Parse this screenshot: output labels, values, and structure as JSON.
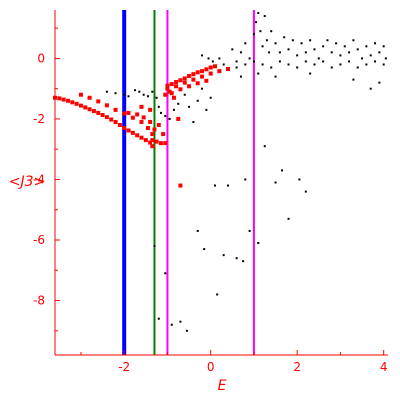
{
  "chart_data": {
    "type": "scatter",
    "xlabel": "E",
    "ylabel": "<J3>",
    "xlim": [
      -3.6,
      4.1
    ],
    "ylim": [
      -9.8,
      1.6
    ],
    "x_ticks": [
      -2,
      0,
      2,
      4
    ],
    "x_tick_labels": [
      "-2",
      "0",
      "2",
      "4"
    ],
    "y_ticks": [
      0,
      -2,
      -4,
      -6,
      -8
    ],
    "y_tick_labels": [
      "0",
      "-2",
      "-4",
      "-6",
      "-8"
    ],
    "grid": false,
    "colors": {
      "axis": "#ff0000",
      "red_points": "#ff0000",
      "black_points": "#000000",
      "blue_line": "#0000ff",
      "green_line": "#008000",
      "magenta_line": "#ff00ff"
    },
    "vertical_lines": [
      {
        "x": -2.0,
        "color": "#0000ff",
        "style": "thick"
      },
      {
        "x": -1.3,
        "color": "#008000",
        "style": "thin"
      },
      {
        "x": -1.0,
        "color": "#ff00ff",
        "style": "thin"
      },
      {
        "x": 1.0,
        "color": "#ff00ff",
        "style": "thin"
      }
    ],
    "series": [
      {
        "color": "#ff0000",
        "points": [
          [
            -3.6,
            -1.3
          ],
          [
            -3.5,
            -1.32
          ],
          [
            -3.4,
            -1.36
          ],
          [
            -3.3,
            -1.4
          ],
          [
            -3.2,
            -1.45
          ],
          [
            -3.1,
            -1.5
          ],
          [
            -3.0,
            -1.56
          ],
          [
            -2.9,
            -1.62
          ],
          [
            -2.8,
            -1.68
          ],
          [
            -2.7,
            -1.74
          ],
          [
            -2.6,
            -1.8
          ],
          [
            -2.5,
            -1.87
          ],
          [
            -2.4,
            -1.94
          ],
          [
            -2.3,
            -2.02
          ],
          [
            -2.2,
            -2.1
          ],
          [
            -2.1,
            -2.2
          ],
          [
            -2.0,
            -2.3
          ],
          [
            -1.9,
            -2.38
          ],
          [
            -1.8,
            -2.46
          ],
          [
            -1.7,
            -2.54
          ],
          [
            -1.6,
            -2.62
          ],
          [
            -1.5,
            -2.7
          ],
          [
            -1.4,
            -2.78
          ],
          [
            -1.35,
            -2.9
          ],
          [
            -3.0,
            -1.2
          ],
          [
            -2.8,
            -1.3
          ],
          [
            -2.6,
            -1.42
          ],
          [
            -2.4,
            -1.55
          ],
          [
            -2.2,
            -1.7
          ],
          [
            -2.0,
            -1.82
          ],
          [
            -1.8,
            -1.96
          ],
          [
            -1.6,
            -2.1
          ],
          [
            -1.45,
            -2.3
          ],
          [
            -1.35,
            -2.5
          ],
          [
            -1.9,
            -1.8
          ],
          [
            -1.7,
            -1.85
          ],
          [
            -1.55,
            -1.95
          ],
          [
            -1.4,
            -2.1
          ],
          [
            -1.3,
            -2.35
          ],
          [
            -1.35,
            -2.7
          ],
          [
            -1.25,
            -2.75
          ],
          [
            -1.15,
            -2.8
          ],
          [
            -1.05,
            -2.8
          ],
          [
            -1.6,
            -1.6
          ],
          [
            -1.4,
            -1.7
          ],
          [
            -1.2,
            -2.2
          ],
          [
            -1.1,
            -2.5
          ],
          [
            -1.0,
            -0.9
          ],
          [
            -0.9,
            -0.85
          ],
          [
            -0.8,
            -0.78
          ],
          [
            -0.7,
            -0.72
          ],
          [
            -0.6,
            -0.66
          ],
          [
            -0.5,
            -0.58
          ],
          [
            -0.4,
            -0.52
          ],
          [
            -0.3,
            -0.46
          ],
          [
            -0.2,
            -0.42
          ],
          [
            -0.1,
            -0.36
          ],
          [
            0.0,
            -0.3
          ],
          [
            0.1,
            -0.26
          ],
          [
            -1.0,
            -1.0
          ],
          [
            -0.8,
            -0.92
          ],
          [
            -0.6,
            -0.8
          ],
          [
            -0.4,
            -0.7
          ],
          [
            -0.2,
            -0.6
          ],
          [
            0.0,
            -0.5
          ],
          [
            0.2,
            -0.42
          ],
          [
            0.4,
            -0.35
          ],
          [
            -0.9,
            -1.15
          ],
          [
            -0.7,
            -1.02
          ],
          [
            -0.5,
            -0.92
          ],
          [
            -0.3,
            -0.82
          ],
          [
            -0.1,
            -0.74
          ],
          [
            -1.05,
            -1.2
          ],
          [
            -0.95,
            -1.1
          ],
          [
            -0.85,
            -1.3
          ],
          [
            -0.75,
            -2.0
          ],
          [
            -0.7,
            -4.2
          ]
        ]
      },
      {
        "color": "#000000",
        "points": [
          [
            -2.4,
            -1.1
          ],
          [
            -2.2,
            -1.15
          ],
          [
            -2.0,
            -1.2
          ],
          [
            -1.9,
            -1.25
          ],
          [
            -1.75,
            -1.05
          ],
          [
            -1.65,
            -1.1
          ],
          [
            -1.55,
            -1.2
          ],
          [
            -1.45,
            -1.25
          ],
          [
            -1.35,
            -1.1
          ],
          [
            -1.25,
            -1.3
          ],
          [
            -1.2,
            -1.6
          ],
          [
            -1.15,
            -1.8
          ],
          [
            -1.05,
            -1.9
          ],
          [
            -0.95,
            -2.0
          ],
          [
            -0.85,
            -1.7
          ],
          [
            -0.75,
            -1.5
          ],
          [
            -0.6,
            -1.2
          ],
          [
            -0.5,
            -1.6
          ],
          [
            -0.4,
            -2.1
          ],
          [
            -0.3,
            -1.4
          ],
          [
            -0.2,
            -1.0
          ],
          [
            -0.1,
            -1.7
          ],
          [
            0.0,
            -1.3
          ],
          [
            -1.3,
            -6.2
          ],
          [
            -1.05,
            -7.1
          ],
          [
            -0.9,
            -8.8
          ],
          [
            -0.7,
            -8.7
          ],
          [
            -0.55,
            -9.0
          ],
          [
            -1.2,
            -8.6
          ],
          [
            -0.3,
            -5.7
          ],
          [
            -0.15,
            -6.3
          ],
          [
            0.1,
            -4.2
          ],
          [
            0.15,
            -7.8
          ],
          [
            0.3,
            -6.5
          ],
          [
            0.4,
            -4.2
          ],
          [
            0.6,
            -6.6
          ],
          [
            0.75,
            -6.7
          ],
          [
            0.8,
            -4.0
          ],
          [
            0.9,
            -5.7
          ],
          [
            1.1,
            -6.1
          ],
          [
            1.25,
            -2.9
          ],
          [
            1.5,
            -4.1
          ],
          [
            1.65,
            -3.7
          ],
          [
            1.8,
            -5.3
          ],
          [
            2.2,
            -4.4
          ],
          [
            2.05,
            -4.0
          ],
          [
            0.5,
            0.3
          ],
          [
            0.6,
            -0.1
          ],
          [
            0.7,
            0.2
          ],
          [
            0.8,
            0.5
          ],
          [
            0.9,
            0.0
          ],
          [
            1.0,
            0.8
          ],
          [
            1.05,
            1.2
          ],
          [
            1.1,
            1.5
          ],
          [
            1.15,
            0.9
          ],
          [
            1.2,
            0.4
          ],
          [
            1.25,
            1.4
          ],
          [
            1.3,
            0.6
          ],
          [
            1.35,
            0.2
          ],
          [
            1.4,
            0.9
          ],
          [
            1.5,
            0.5
          ],
          [
            1.6,
            0.2
          ],
          [
            1.7,
            0.7
          ],
          [
            1.8,
            0.3
          ],
          [
            1.9,
            0.6
          ],
          [
            2.0,
            0.1
          ],
          [
            2.1,
            0.5
          ],
          [
            2.2,
            0.2
          ],
          [
            2.3,
            0.6
          ],
          [
            2.4,
            0.3
          ],
          [
            2.5,
            0.0
          ],
          [
            2.6,
            0.4
          ],
          [
            2.7,
            0.6
          ],
          [
            2.8,
            0.2
          ],
          [
            2.9,
            0.5
          ],
          [
            3.0,
            0.1
          ],
          [
            3.1,
            0.4
          ],
          [
            3.2,
            0.2
          ],
          [
            3.3,
            0.6
          ],
          [
            3.4,
            0.3
          ],
          [
            3.5,
            0.0
          ],
          [
            3.6,
            0.4
          ],
          [
            3.7,
            0.1
          ],
          [
            3.8,
            0.5
          ],
          [
            3.9,
            0.2
          ],
          [
            4.0,
            0.4
          ],
          [
            4.05,
            0.0
          ],
          [
            0.6,
            -0.3
          ],
          [
            0.8,
            -0.2
          ],
          [
            1.0,
            -0.1
          ],
          [
            1.2,
            -0.2
          ],
          [
            1.4,
            -0.3
          ],
          [
            1.6,
            -0.1
          ],
          [
            1.8,
            -0.2
          ],
          [
            2.0,
            -0.3
          ],
          [
            2.2,
            -0.1
          ],
          [
            2.4,
            -0.2
          ],
          [
            2.6,
            -0.1
          ],
          [
            2.8,
            -0.3
          ],
          [
            3.0,
            -0.2
          ],
          [
            3.2,
            -0.1
          ],
          [
            3.4,
            -0.3
          ],
          [
            3.6,
            -0.2
          ],
          [
            3.8,
            -0.1
          ],
          [
            4.0,
            -0.2
          ],
          [
            0.7,
            -0.6
          ],
          [
            1.1,
            -0.5
          ],
          [
            1.5,
            -0.6
          ],
          [
            2.3,
            -0.5
          ],
          [
            3.3,
            -0.7
          ],
          [
            3.9,
            -0.8
          ],
          [
            3.7,
            -1.0
          ],
          [
            -0.2,
            0.1
          ],
          [
            -0.05,
            0.0
          ],
          [
            0.05,
            -0.1
          ],
          [
            0.2,
            0.0
          ],
          [
            0.3,
            -0.2
          ]
        ]
      }
    ]
  }
}
